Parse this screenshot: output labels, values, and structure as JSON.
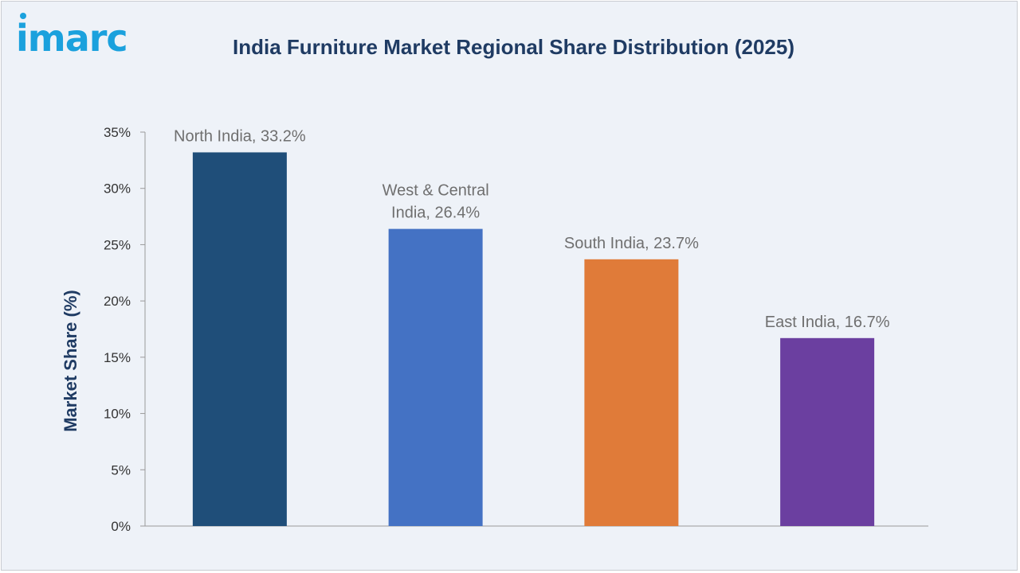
{
  "brand": {
    "logo_text": "imarc",
    "logo_color": "#1ba1dd"
  },
  "chart_data": {
    "type": "bar",
    "title": "India Furniture Market Regional Share Distribution (2025)",
    "xlabel": "",
    "ylabel": "Market Share (%)",
    "ylim": [
      0,
      35
    ],
    "ytick_step": 5,
    "ytick_suffix": "%",
    "grid": false,
    "legend": "none",
    "categories": [
      "North India",
      "West & Central India",
      "South India",
      "East India"
    ],
    "values": [
      33.2,
      26.4,
      23.7,
      16.7
    ],
    "colors": [
      "#1f4e79",
      "#4472c4",
      "#e07b39",
      "#6b3fa0"
    ],
    "data_labels": [
      [
        "North India, 33.2%"
      ],
      [
        "West & Central",
        "India, 26.4%"
      ],
      [
        "South India, 23.7%"
      ],
      [
        "East India, 16.7%"
      ]
    ]
  }
}
